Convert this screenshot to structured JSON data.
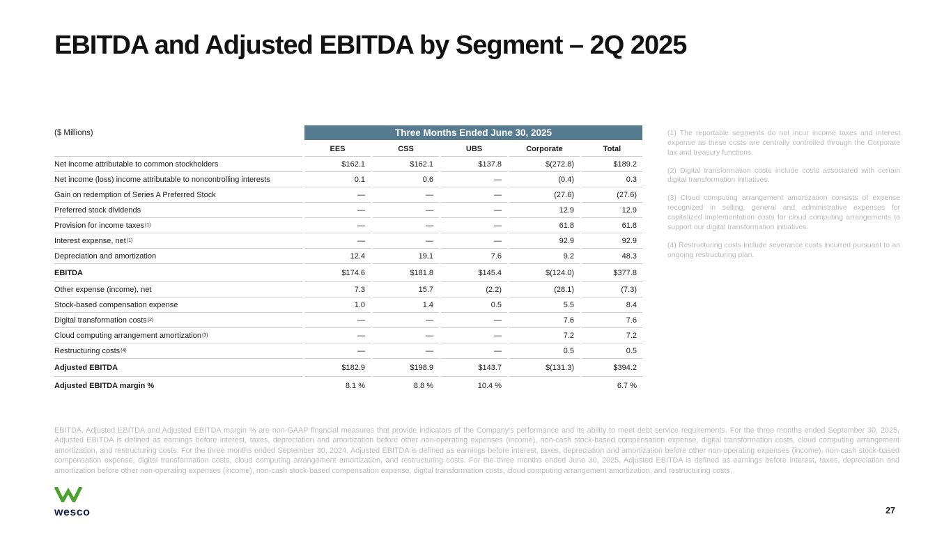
{
  "title": "EBITDA and Adjusted EBITDA by Segment – 2Q 2025",
  "table": {
    "units_label": "($ Millions)",
    "period_header": "Three Months Ended June 30, 2025",
    "columns": [
      "EES",
      "CSS",
      "UBS",
      "Corporate",
      "Total"
    ],
    "rows": [
      {
        "label": "Net income attributable to common stockholders",
        "sup": "",
        "bold": false,
        "values": [
          "$162.1",
          "$162.1",
          "$137.8",
          "$(272.8)",
          "$189.2"
        ]
      },
      {
        "label": "Net income (loss) income attributable to noncontrolling interests",
        "sup": "",
        "bold": false,
        "values": [
          "0.1",
          "0.6",
          "—",
          "(0.4)",
          "0.3"
        ]
      },
      {
        "label": "Gain on redemption of Series A Preferred Stock",
        "sup": "",
        "bold": false,
        "values": [
          "—",
          "—",
          "—",
          "(27.6)",
          "(27.6)"
        ]
      },
      {
        "label": "Preferred stock dividends",
        "sup": "",
        "bold": false,
        "values": [
          "—",
          "—",
          "—",
          "12.9",
          "12.9"
        ]
      },
      {
        "label": "Provision for income taxes",
        "sup": "(1)",
        "bold": false,
        "values": [
          "—",
          "—",
          "—",
          "61.8",
          "61.8"
        ]
      },
      {
        "label": "Interest expense, net",
        "sup": "(1)",
        "bold": false,
        "values": [
          "—",
          "—",
          "—",
          "92.9",
          "92.9"
        ]
      },
      {
        "label": "Depreciation and amortization",
        "sup": "",
        "bold": false,
        "values": [
          "12.4",
          "19.1",
          "7.6",
          "9.2",
          "48.3"
        ]
      },
      {
        "label": "EBITDA",
        "sup": "",
        "bold": true,
        "values": [
          "$174.6",
          "$181.8",
          "$145.4",
          "$(124.0)",
          "$377.8"
        ]
      },
      {
        "label": "Other expense (income), net",
        "sup": "",
        "bold": false,
        "values": [
          "7.3",
          "15.7",
          "(2.2)",
          "(28.1)",
          "(7.3)"
        ]
      },
      {
        "label": "Stock-based compensation expense",
        "sup": "",
        "bold": false,
        "values": [
          "1.0",
          "1.4",
          "0.5",
          "5.5",
          "8.4"
        ]
      },
      {
        "label": "Digital transformation costs",
        "sup": "(2)",
        "bold": false,
        "values": [
          "—",
          "—",
          "—",
          "7.6",
          "7.6"
        ]
      },
      {
        "label": "Cloud computing arrangement amortization",
        "sup": "(3)",
        "bold": false,
        "values": [
          "—",
          "—",
          "—",
          "7.2",
          "7.2"
        ]
      },
      {
        "label": "Restructuring costs",
        "sup": "(4)",
        "bold": false,
        "values": [
          "—",
          "—",
          "—",
          "0.5",
          "0.5"
        ]
      },
      {
        "label": "Adjusted EBITDA",
        "sup": "",
        "bold": true,
        "values": [
          "$182.9",
          "$198.9",
          "$143.7",
          "$(131.3)",
          "$394.2"
        ]
      },
      {
        "label": "Adjusted EBITDA margin %",
        "sup": "",
        "bold": true,
        "values": [
          "8.1 %",
          "8.8 %",
          "10.4 %",
          "",
          "6.7 %"
        ]
      }
    ]
  },
  "footnotes": [
    "(1)  The reportable segments do not incur income taxes and interest expense as these costs are centrally controlled through the Corporate tax and treasury functions.",
    "(2)  Digital transformation costs include costs associated with certain digital transformation initiatives.",
    "(3)  Cloud computing arrangement amortization consists of expense recognized in selling, general and administrative expenses for capitalized implementation costs for cloud computing arrangements to support our digital transformation initiatives.",
    "(4)  Restructuring costs include severance costs incurred pursuant to an ongoing restructuring plan."
  ],
  "disclaimer": "EBITDA, Adjusted EBITDA and Adjusted EBITDA margin % are non-GAAP financial measures that provide indicators of the Company's performance and its ability to meet debt service requirements. For the three months ended September 30, 2025, Adjusted EBITDA is defined as earnings before interest, taxes, depreciation and amortization before other non-operating expenses (income), non-cash stock-based compensation expense, digital transformation costs, cloud computing arrangement amortization, and restructuring costs. For the three months ended September 30, 2024, Adjusted EBITDA is defined as earnings before interest, taxes, depreciation and amortization before other non-operating expenses (income), non-cash stock-based compensation expense, digital transformation costs, cloud computing arrangement amortization, and restructuring costs. For the three months ended June 30, 2025, Adjusted EBITDA is defined as earnings before interest, taxes, depreciation and amortization before other non-operating expenses (income), non-cash stock-based compensation expense, digital transformation costs, cloud computing arrangement amortization, and restructuring costs.",
  "footer": {
    "logo_text": "wesco",
    "page_number": "27"
  },
  "colors": {
    "band_bg": "#567B90",
    "band_text": "#FFFFFF",
    "logo_green": "#4CA22E",
    "logo_navy": "#152349",
    "rule": "#CCCCCC",
    "muted_text": "#B9B9B9"
  }
}
